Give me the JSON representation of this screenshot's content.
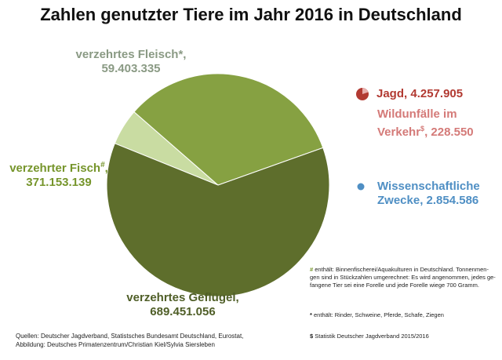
{
  "title": "Zahlen genutzter Tiere im Jahr 2016 in Deutschland",
  "colors": {
    "fleisch": "#c9dca2",
    "fisch": "#86a142",
    "gefluegel": "#5e6e2c",
    "jagd": "#b23a32",
    "wildunfaelle": "#d47a78",
    "wissenschaft": "#4f8fc4",
    "label_fleisch": "#8a9a84",
    "label_fisch": "#76952b",
    "label_gefluegel": "#4f5e27"
  },
  "chart_data": {
    "type": "pie",
    "title": "Zahlen genutzter Tiere im Jahr 2016 in Deutschland",
    "slices": [
      {
        "label": "verzehrtes Fleisch*,",
        "value": 59403335,
        "value_text": "59.403.335"
      },
      {
        "label": "verzehrter Fisch",
        "mark": "#",
        "label_suffix": ",",
        "value": 371153139,
        "value_text": "371.153.139"
      },
      {
        "label": "verzehrtes Geflügel,",
        "value": 689451056,
        "value_text": "689.451.056"
      }
    ],
    "small_categories": [
      {
        "label": "Jagd,",
        "value": 4257905,
        "value_text": "4.257.905"
      },
      {
        "label_line1": "Wildunfälle im",
        "label_line2": "Verkehr",
        "mark": "$",
        "label_suffix": ",",
        "value": 228550,
        "value_text": "228.550"
      },
      {
        "label_line1": "Wissenschaftliche",
        "label_line2": "Zwecke,",
        "value": 2854586,
        "value_text": "2.854.586"
      }
    ]
  },
  "notes": {
    "fisch_mark": "#",
    "fisch_line1": "enthält: Binnenfischerei/Aquakulturen in Deutschland. Tonnenmen-",
    "fisch_line2": "gen sind in Stückzahlen umgerechnet: Es wird angenommen, jedes ge-",
    "fisch_line3": "fangene Tier sei eine Forelle und jede Forelle wiege 700 Gramm.",
    "fleisch_mark": "*",
    "fleisch_text": "enthält: Rinder, Schweine, Pferde, Schafe, Ziegen",
    "jagd_mark": "$",
    "jagd_text": "Statistik Deutscher Jagdverband 2015/2016"
  },
  "sources": {
    "line1": "Quellen: Deutscher Jagdverband, Statistsches Bundesamt Deutschland, Eurostat,",
    "line2": "Abbildung: Deutsches Primatenzentrum/Christian Kiel/Sylvia Siersleben"
  }
}
